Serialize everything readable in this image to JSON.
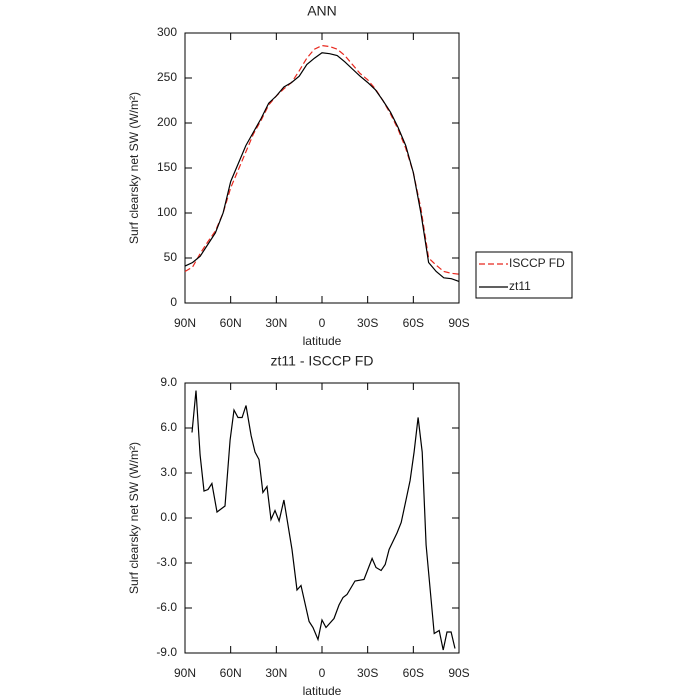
{
  "chart_data": [
    {
      "type": "line",
      "title": "ANN",
      "xlabel": "latitude",
      "ylabel": "Surf clearsky net SW (W/m²)",
      "x": [
        90,
        85,
        80,
        75,
        70,
        65,
        60,
        55,
        50,
        45,
        40,
        35,
        30,
        25,
        20,
        15,
        10,
        5,
        0,
        -5,
        -10,
        -15,
        -20,
        -25,
        -30,
        -35,
        -40,
        -45,
        -50,
        -55,
        -60,
        -65,
        -70,
        -75,
        -80,
        -85,
        -90
      ],
      "series": [
        {
          "name": "ISCCP FD",
          "color": "#e8281e",
          "dash": true,
          "values": [
            35,
            40,
            55,
            68,
            80,
            100,
            128,
            148,
            168,
            188,
            203,
            220,
            230,
            238,
            245,
            258,
            272,
            282,
            286,
            285,
            282,
            275,
            265,
            255,
            248,
            238,
            225,
            210,
            193,
            172,
            145,
            105,
            50,
            42,
            35,
            33,
            32
          ]
        },
        {
          "name": "zt11",
          "color": "#000000",
          "dash": false,
          "values": [
            41,
            45,
            52,
            65,
            78,
            100,
            135,
            155,
            175,
            190,
            205,
            222,
            230,
            240,
            245,
            252,
            265,
            272,
            278,
            277,
            275,
            268,
            260,
            252,
            245,
            237,
            225,
            212,
            195,
            175,
            145,
            100,
            45,
            35,
            28,
            27,
            24
          ]
        }
      ],
      "xlim": [
        90,
        -90
      ],
      "xticks": [
        {
          "value": 90,
          "label": "90N"
        },
        {
          "value": 60,
          "label": "60N"
        },
        {
          "value": 30,
          "label": "30N"
        },
        0,
        {
          "value": -30,
          "label": "30S"
        },
        {
          "value": -60,
          "label": "60S"
        },
        {
          "value": -90,
          "label": "90S"
        }
      ],
      "ylim": [
        0,
        300
      ],
      "yticks": [
        0,
        50,
        100,
        150,
        200,
        250,
        300
      ],
      "legend": "right"
    },
    {
      "type": "line",
      "title": "zt11 - ISCCP FD",
      "xlabel": "latitude",
      "ylabel": "Surf clearsky net SW (W/m²)",
      "x": [
        85.4,
        82.8,
        80.1,
        77.5,
        74.9,
        72.3,
        69.0,
        63.7,
        60.4,
        57.8,
        55.2,
        52.5,
        49.9,
        46.6,
        44.0,
        41.4,
        38.8,
        36.1,
        33.5,
        30.9,
        28.2,
        25.0,
        19.7,
        16.4,
        13.8,
        8.5,
        5.9,
        2.6,
        0.0,
        -2.6,
        -7.9,
        -11.2,
        -13.8,
        -16.4,
        -21.7,
        -27.6,
        -32.9,
        -35.5,
        -38.8,
        -41.5,
        -44.1,
        -49.3,
        -52.0,
        -55.2,
        -57.9,
        -60.5,
        -63.1,
        -65.8,
        -68.4,
        -73.7,
        -77.0,
        -79.6,
        -82.1,
        -84.8,
        -87.4
      ],
      "values": [
        5.7,
        8.5,
        4.2,
        1.8,
        1.9,
        2.3,
        0.4,
        0.8,
        5.2,
        7.2,
        6.7,
        6.7,
        7.5,
        5.5,
        4.4,
        3.9,
        1.7,
        2.1,
        -0.1,
        0.5,
        -0.2,
        1.2,
        -2.1,
        -4.8,
        -4.5,
        -6.9,
        -7.3,
        -8.1,
        -6.8,
        -7.3,
        -6.7,
        -5.8,
        -5.3,
        -5.1,
        -4.2,
        -4.1,
        -2.7,
        -3.3,
        -3.5,
        -3.1,
        -2.1,
        -1.0,
        -0.3,
        1.2,
        2.5,
        4.4,
        6.7,
        4.4,
        -1.8,
        -7.7,
        -7.5,
        -8.8,
        -7.6,
        -7.6,
        -8.7
      ],
      "color": "#000000",
      "xlim": [
        90,
        -90
      ],
      "xticks": [
        {
          "value": 90,
          "label": "90N"
        },
        {
          "value": 60,
          "label": "60N"
        },
        {
          "value": 30,
          "label": "30N"
        },
        0,
        {
          "value": -30,
          "label": "30S"
        },
        {
          "value": -60,
          "label": "60S"
        },
        {
          "value": -90,
          "label": "90S"
        }
      ],
      "ylim": [
        -9,
        9
      ],
      "yticks": [
        {
          "value": -9,
          "label": "-9.0"
        },
        {
          "value": -6,
          "label": "-6.0"
        },
        {
          "value": -3,
          "label": "-3.0"
        },
        {
          "value": 0,
          "label": "0.0"
        },
        {
          "value": 3,
          "label": "3.0"
        },
        {
          "value": 6,
          "label": "6.0"
        },
        {
          "value": 9,
          "label": "9.0"
        }
      ]
    }
  ]
}
